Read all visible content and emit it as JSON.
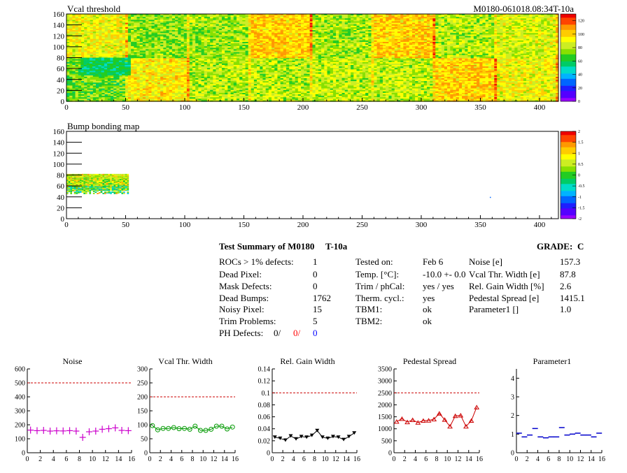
{
  "header": {
    "module_id": "M0180-061018.08:34T-10a"
  },
  "palette": {
    "threshold_colors": [
      "#9900ff",
      "#5500ff",
      "#1f1fff",
      "#0066ff",
      "#00b3ff",
      "#00dcc8",
      "#00cc66",
      "#22cc22",
      "#88e000",
      "#ccee22",
      "#ffff00",
      "#ffcc00",
      "#ff9900",
      "#ff4400",
      "#ee0000"
    ],
    "red_dashed": "#cc0000",
    "noise_color": "#cc00cc",
    "vcal_color": "#009900",
    "gain_color": "#000000",
    "pedestal_color": "#cc0000",
    "param1_color": "#0000cc",
    "ph_red": "#ff0000",
    "ph_blue": "#0000ff"
  },
  "maps": [
    {
      "id": "vcal-threshold-map",
      "title": "Vcal threshold",
      "x_ticks": [
        0,
        50,
        100,
        150,
        200,
        250,
        300,
        350,
        400
      ],
      "y_ticks": [
        0,
        20,
        40,
        60,
        80,
        100,
        120,
        140,
        160
      ],
      "xlim": [
        0,
        416
      ],
      "ylim": [
        0,
        160
      ],
      "zlim": [
        0,
        130
      ],
      "z_ticks": [
        "0",
        "20",
        "40",
        "60",
        "80",
        "100",
        "120"
      ]
    },
    {
      "id": "bump-bonding-map",
      "title": "Bump bonding map",
      "x_ticks": [
        0,
        50,
        100,
        150,
        200,
        250,
        300,
        350,
        400
      ],
      "y_ticks": [
        0,
        20,
        40,
        60,
        80,
        100,
        120,
        140,
        160
      ],
      "xlim": [
        0,
        416
      ],
      "ylim": [
        0,
        160
      ],
      "zlim": [
        -2,
        2
      ],
      "z_ticks": [
        "-2",
        "-1.5",
        "-1",
        "-0.5",
        "0",
        "0.5",
        "1",
        "1.5",
        "2"
      ]
    }
  ],
  "summary": {
    "title": "Test Summary of M0180",
    "temp_tag": "T-10a",
    "grade_label": "GRADE:",
    "grade_value": "C",
    "left_rows": [
      {
        "label": "ROCs > 1% defects:",
        "value": "1"
      },
      {
        "label": "Dead Pixel:",
        "value": "0"
      },
      {
        "label": "Mask Defects:",
        "value": "0"
      },
      {
        "label": "Dead Bumps:",
        "value": "1762"
      },
      {
        "label": "Noisy Pixel:",
        "value": "15"
      },
      {
        "label": "Trim Problems:",
        "value": "5"
      }
    ],
    "ph_defects": {
      "label": "PH Defects:",
      "v1": "0/",
      "v2": "0/",
      "v3": "0"
    },
    "mid_rows": [
      {
        "label": "Tested on:",
        "value": "Feb 6"
      },
      {
        "label": "Temp. [°C]:",
        "value": "-10.0 +- 0.0"
      },
      {
        "label": "Trim / phCal:",
        "value": "yes / yes"
      },
      {
        "label": "Therm. cycl.:",
        "value": "yes"
      },
      {
        "label": "TBM1:",
        "value": "ok"
      },
      {
        "label": "TBM2:",
        "value": "ok"
      }
    ],
    "right_rows": [
      {
        "label": "Noise [e]",
        "value": "157.3"
      },
      {
        "label": "Vcal Thr. Width [e]",
        "value": "87.8"
      },
      {
        "label": "Rel. Gain Width [%]",
        "value": "2.6"
      },
      {
        "label": "Pedestal Spread [e]",
        "value": "1415.1"
      },
      {
        "label": "Parameter1 []",
        "value": "1.0"
      }
    ]
  },
  "chart_data": [
    {
      "type": "scatter",
      "id": "noise",
      "title": "Noise",
      "x": [
        0,
        1,
        2,
        3,
        4,
        5,
        6,
        7,
        8,
        9,
        10,
        11,
        12,
        13,
        14,
        15
      ],
      "values": [
        162,
        158,
        160,
        155,
        157,
        156,
        158,
        155,
        110,
        150,
        155,
        168,
        172,
        178,
        160,
        158
      ],
      "ylim": [
        0,
        600
      ],
      "y_ticks": [
        0,
        100,
        200,
        300,
        400,
        500,
        600
      ],
      "x_ticks": [
        0,
        2,
        4,
        6,
        8,
        10,
        12,
        14,
        16
      ],
      "xlim": [
        0,
        16
      ],
      "reference_line": 500,
      "marker": "cross",
      "color": "#cc00cc"
    },
    {
      "type": "line",
      "id": "vcal-thr-width",
      "title": "Vcal Thr. Width",
      "x": [
        0,
        1,
        2,
        3,
        4,
        5,
        6,
        7,
        8,
        9,
        10,
        11,
        12,
        13,
        14,
        15
      ],
      "values": [
        97,
        82,
        87,
        87,
        90,
        86,
        87,
        84,
        95,
        80,
        80,
        84,
        95,
        95,
        85,
        92
      ],
      "ylim": [
        0,
        300
      ],
      "y_ticks": [
        0,
        50,
        100,
        150,
        200,
        250,
        300
      ],
      "x_ticks": [
        0,
        2,
        4,
        6,
        8,
        10,
        12,
        14,
        16
      ],
      "xlim": [
        0,
        16
      ],
      "reference_line": 200,
      "marker": "circle",
      "color": "#009900"
    },
    {
      "type": "line",
      "id": "rel-gain-width",
      "title": "Rel. Gain Width",
      "x": [
        0,
        1,
        2,
        3,
        4,
        5,
        6,
        7,
        8,
        9,
        10,
        11,
        12,
        13,
        14,
        15
      ],
      "values": [
        0.026,
        0.024,
        0.021,
        0.028,
        0.023,
        0.027,
        0.026,
        0.029,
        0.037,
        0.026,
        0.024,
        0.027,
        0.026,
        0.022,
        0.027,
        0.033
      ],
      "ylim": [
        0,
        0.14
      ],
      "y_ticks": [
        0,
        0.02,
        0.04,
        0.06,
        0.08,
        0.1,
        0.12,
        0.14
      ],
      "x_ticks": [
        0,
        2,
        4,
        6,
        8,
        10,
        12,
        14,
        16
      ],
      "xlim": [
        0,
        16
      ],
      "reference_line": 0.1,
      "marker": "triangle-down",
      "color": "#000000"
    },
    {
      "type": "line",
      "id": "pedestal-spread",
      "title": "Pedestal Spread",
      "x": [
        0,
        1,
        2,
        3,
        4,
        5,
        6,
        7,
        8,
        9,
        10,
        11,
        12,
        13,
        14,
        15
      ],
      "values": [
        1300,
        1420,
        1280,
        1370,
        1260,
        1340,
        1350,
        1400,
        1640,
        1380,
        1100,
        1540,
        1560,
        1100,
        1340,
        1900
      ],
      "ylim": [
        0,
        3500
      ],
      "y_ticks": [
        0,
        500,
        1000,
        1500,
        2000,
        2500,
        3000,
        3500
      ],
      "x_ticks": [
        0,
        2,
        4,
        6,
        8,
        10,
        12,
        14,
        16
      ],
      "xlim": [
        0,
        16
      ],
      "reference_line": 2500,
      "marker": "triangle-up",
      "color": "#cc0000"
    },
    {
      "type": "scatter",
      "id": "parameter1",
      "title": "Parameter1",
      "x": [
        0,
        1,
        2,
        3,
        4,
        5,
        6,
        7,
        8,
        9,
        10,
        11,
        12,
        13,
        14,
        15
      ],
      "values": [
        1.05,
        0.85,
        0.95,
        1.3,
        0.85,
        0.8,
        0.85,
        0.85,
        1.35,
        0.95,
        1.0,
        1.05,
        0.95,
        0.95,
        0.85,
        1.05
      ],
      "ylim": [
        0,
        4.5
      ],
      "y_ticks": [
        0,
        1,
        2,
        3,
        4
      ],
      "x_ticks": [
        0,
        2,
        4,
        6,
        8,
        10,
        12,
        14,
        16
      ],
      "xlim": [
        0,
        16
      ],
      "reference_line": null,
      "marker": "hbar",
      "color": "#0000cc"
    }
  ]
}
